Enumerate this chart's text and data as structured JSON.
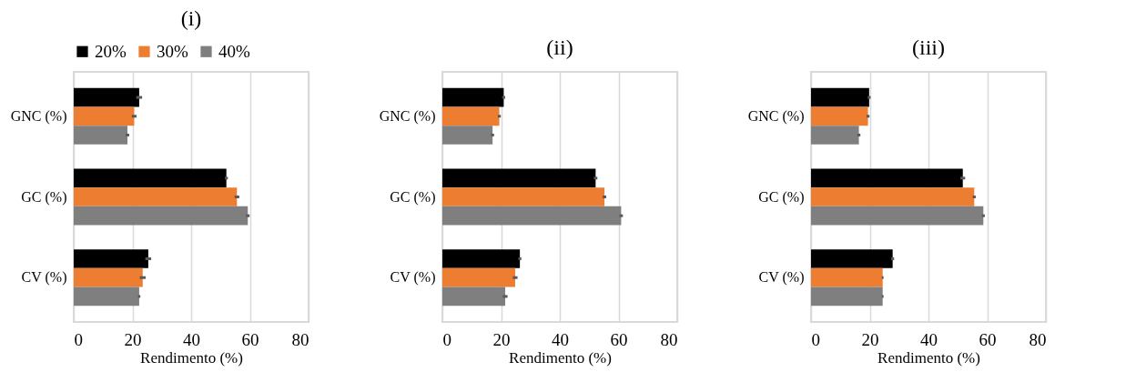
{
  "chart_data": [
    {
      "type": "bar",
      "title": "(i)",
      "orientation": "horizontal",
      "xlabel": "Rendimento (%)",
      "categories": [
        "GNC (%)",
        "GC (%)",
        "CV (%)"
      ],
      "xlim": [
        0,
        80
      ],
      "xticks": [
        0,
        20,
        40,
        60,
        80
      ],
      "grid": "x",
      "legend": "top left",
      "series": [
        {
          "name": "20%",
          "color": "#000000",
          "values": [
            22.3,
            52.0,
            25.4
          ],
          "errors": [
            1,
            0.5,
            1
          ]
        },
        {
          "name": "30%",
          "color": "#ed7d31",
          "values": [
            20.6,
            55.6,
            23.5
          ],
          "errors": [
            0.8,
            0.8,
            1
          ]
        },
        {
          "name": "40%",
          "color": "#7f7f7f",
          "values": [
            18.3,
            59.3,
            22.3
          ],
          "errors": [
            0.6,
            0.6,
            0.4
          ]
        }
      ]
    },
    {
      "type": "bar",
      "title": "(ii)",
      "orientation": "horizontal",
      "xlabel": "Rendimento (%)",
      "categories": [
        "GNC (%)",
        "GC (%)",
        "CV (%)"
      ],
      "xlim": [
        0,
        80
      ],
      "xticks": [
        0,
        20,
        40,
        60,
        80
      ],
      "grid": "x",
      "series": [
        {
          "color": "#000000",
          "values": [
            20.9,
            52.2,
            26.4
          ],
          "errors": [
            0.5,
            0.6,
            0.5
          ]
        },
        {
          "color": "#ed7d31",
          "values": [
            19.4,
            55.2,
            24.8
          ],
          "errors": [
            0.5,
            0.6,
            0.8
          ]
        },
        {
          "color": "#7f7f7f",
          "values": [
            17.1,
            60.9,
            21.4
          ],
          "errors": [
            0.5,
            0.6,
            0.8
          ]
        }
      ]
    },
    {
      "type": "bar",
      "title": "(iii)",
      "orientation": "horizontal",
      "xlabel": "Rendimento (%)",
      "categories": [
        "GNC (%)",
        "GC (%)",
        "CV (%)"
      ],
      "xlim": [
        0,
        80
      ],
      "xticks": [
        0,
        20,
        40,
        60,
        80
      ],
      "grid": "x",
      "series": [
        {
          "color": "#000000",
          "values": [
            19.8,
            51.7,
            27.8
          ],
          "errors": [
            0.5,
            0.8,
            0.5
          ]
        },
        {
          "color": "#ed7d31",
          "values": [
            19.4,
            55.6,
            24.4
          ],
          "errors": [
            0.5,
            0.5,
            0.3
          ]
        },
        {
          "color": "#7f7f7f",
          "values": [
            16.3,
            58.7,
            24.4
          ],
          "errors": [
            0.5,
            0.5,
            0.3
          ]
        }
      ]
    }
  ]
}
